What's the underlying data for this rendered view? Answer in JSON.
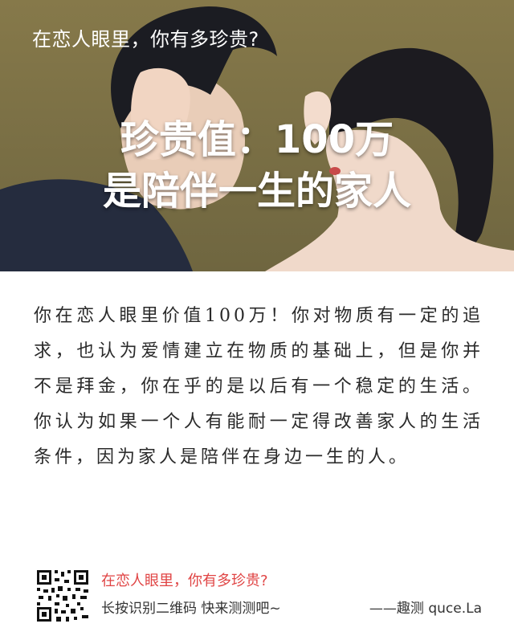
{
  "hero": {
    "quiz_title": "在恋人眼里，你有多珍贵?",
    "result_line1": "珍贵值：100万",
    "result_line2": "是陪伴一生的家人"
  },
  "result": {
    "description": "你在恋人眼里价值100万！你对物质有一定的追求，也认为爱情建立在物质的基础上，但是你并不是拜金，你在乎的是以后有一个稳定的生活。你认为如果一个人有能耐一定得改善家人的生活条件，因为家人是陪伴在身边一生的人。"
  },
  "footer": {
    "quiz_title": "在恋人眼里，你有多珍贵?",
    "hint": "长按识别二维码  快来测测吧~",
    "brand": "——趣测 quce.La",
    "qr_icon": "qr-code-icon"
  },
  "colors": {
    "hero_background": "#8b7d4f",
    "footer_quiz_title": "#e04444",
    "text": "#2a2a2a"
  }
}
